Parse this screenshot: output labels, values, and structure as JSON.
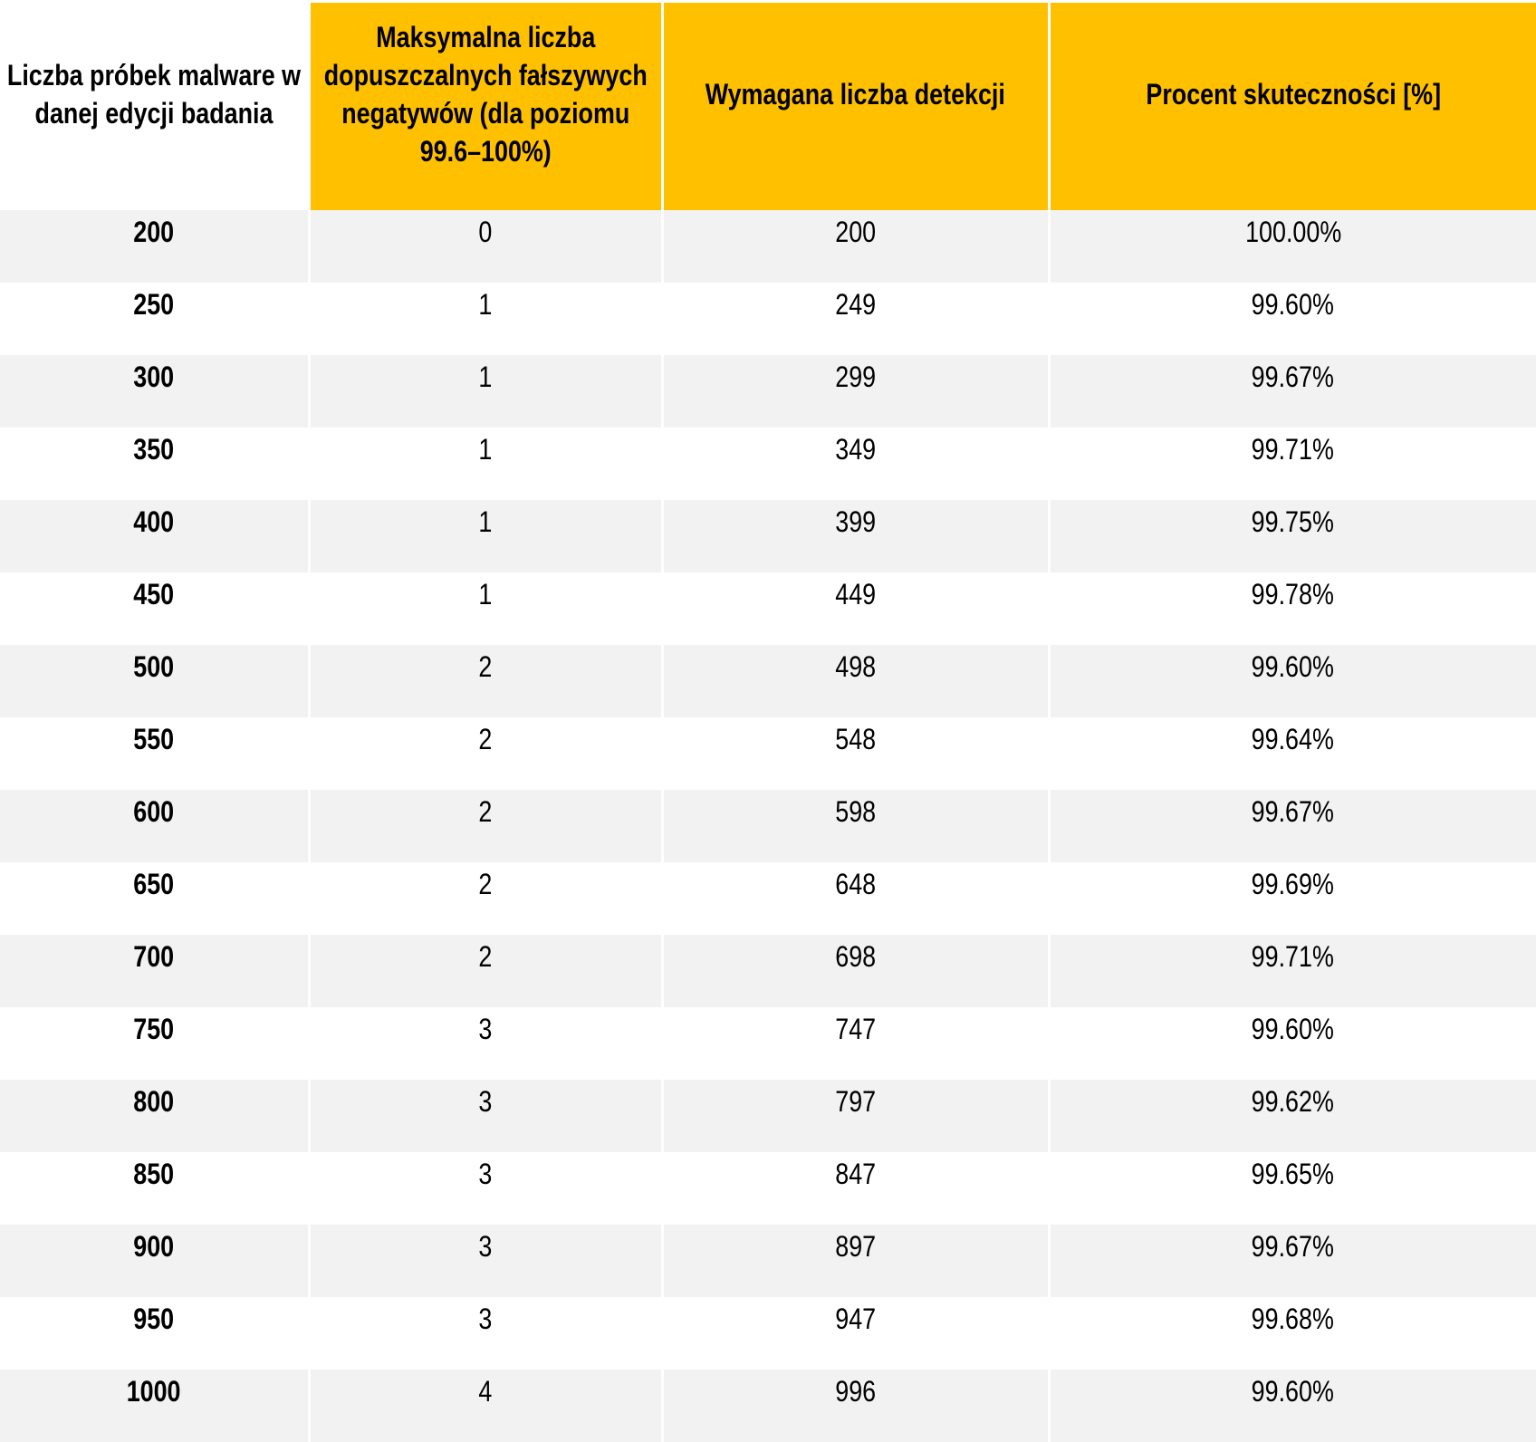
{
  "colors": {
    "header_bg": "#FFC000",
    "header_text": "#000000",
    "row_stripe_bg": "#F2F2F2",
    "row_bg": "#FFFFFF",
    "body_text": "#000000"
  },
  "chart_data": {
    "type": "table",
    "striped": true,
    "columns": [
      "Liczba próbek malware w danej edycji badania",
      "Maksymalna liczba dopuszczalnych fałszywych negatywów (dla poziomu 99.6–100%)",
      "Wymagana liczba detekcji",
      "Procent skuteczności [%]"
    ],
    "rows": [
      [
        "200",
        "0",
        "200",
        "100.00%"
      ],
      [
        "250",
        "1",
        "249",
        "99.60%"
      ],
      [
        "300",
        "1",
        "299",
        "99.67%"
      ],
      [
        "350",
        "1",
        "349",
        "99.71%"
      ],
      [
        "400",
        "1",
        "399",
        "99.75%"
      ],
      [
        "450",
        "1",
        "449",
        "99.78%"
      ],
      [
        "500",
        "2",
        "498",
        "99.60%"
      ],
      [
        "550",
        "2",
        "548",
        "99.64%"
      ],
      [
        "600",
        "2",
        "598",
        "99.67%"
      ],
      [
        "650",
        "2",
        "648",
        "99.69%"
      ],
      [
        "700",
        "2",
        "698",
        "99.71%"
      ],
      [
        "750",
        "3",
        "747",
        "99.60%"
      ],
      [
        "800",
        "3",
        "797",
        "99.62%"
      ],
      [
        "850",
        "3",
        "847",
        "99.65%"
      ],
      [
        "900",
        "3",
        "897",
        "99.67%"
      ],
      [
        "950",
        "3",
        "947",
        "99.68%"
      ],
      [
        "1000",
        "4",
        "996",
        "99.60%"
      ]
    ]
  }
}
